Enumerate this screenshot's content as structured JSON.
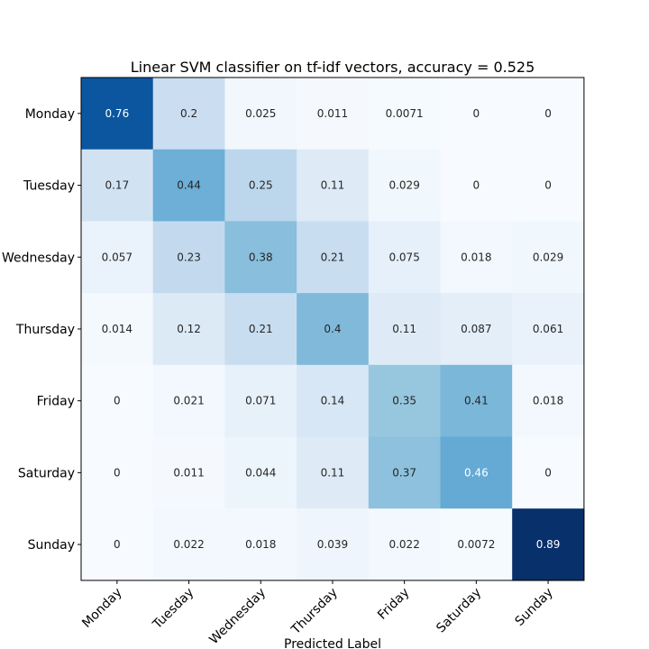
{
  "chart_data": {
    "type": "heatmap",
    "title": "Linear SVM classifier on tf-idf vectors, accuracy = 0.525",
    "xlabel": "Predicted Label",
    "ylabel": "",
    "x_categories": [
      "Monday",
      "Tuesday",
      "Wednesday",
      "Thursday",
      "Friday",
      "Saturday",
      "Sunday"
    ],
    "y_categories": [
      "Monday",
      "Tuesday",
      "Wednesday",
      "Thursday",
      "Friday",
      "Saturday",
      "Sunday"
    ],
    "values": [
      [
        0.76,
        0.2,
        0.025,
        0.011,
        0.0071,
        0,
        0
      ],
      [
        0.17,
        0.44,
        0.25,
        0.11,
        0.029,
        0,
        0
      ],
      [
        0.057,
        0.23,
        0.38,
        0.21,
        0.075,
        0.018,
        0.029
      ],
      [
        0.014,
        0.12,
        0.21,
        0.4,
        0.11,
        0.087,
        0.061
      ],
      [
        0,
        0.021,
        0.071,
        0.14,
        0.35,
        0.41,
        0.018
      ],
      [
        0,
        0.011,
        0.044,
        0.11,
        0.37,
        0.46,
        0
      ],
      [
        0,
        0.022,
        0.018,
        0.039,
        0.022,
        0.0072,
        0.89
      ]
    ],
    "colormap": "Blues",
    "grid": false,
    "legend": "none"
  }
}
